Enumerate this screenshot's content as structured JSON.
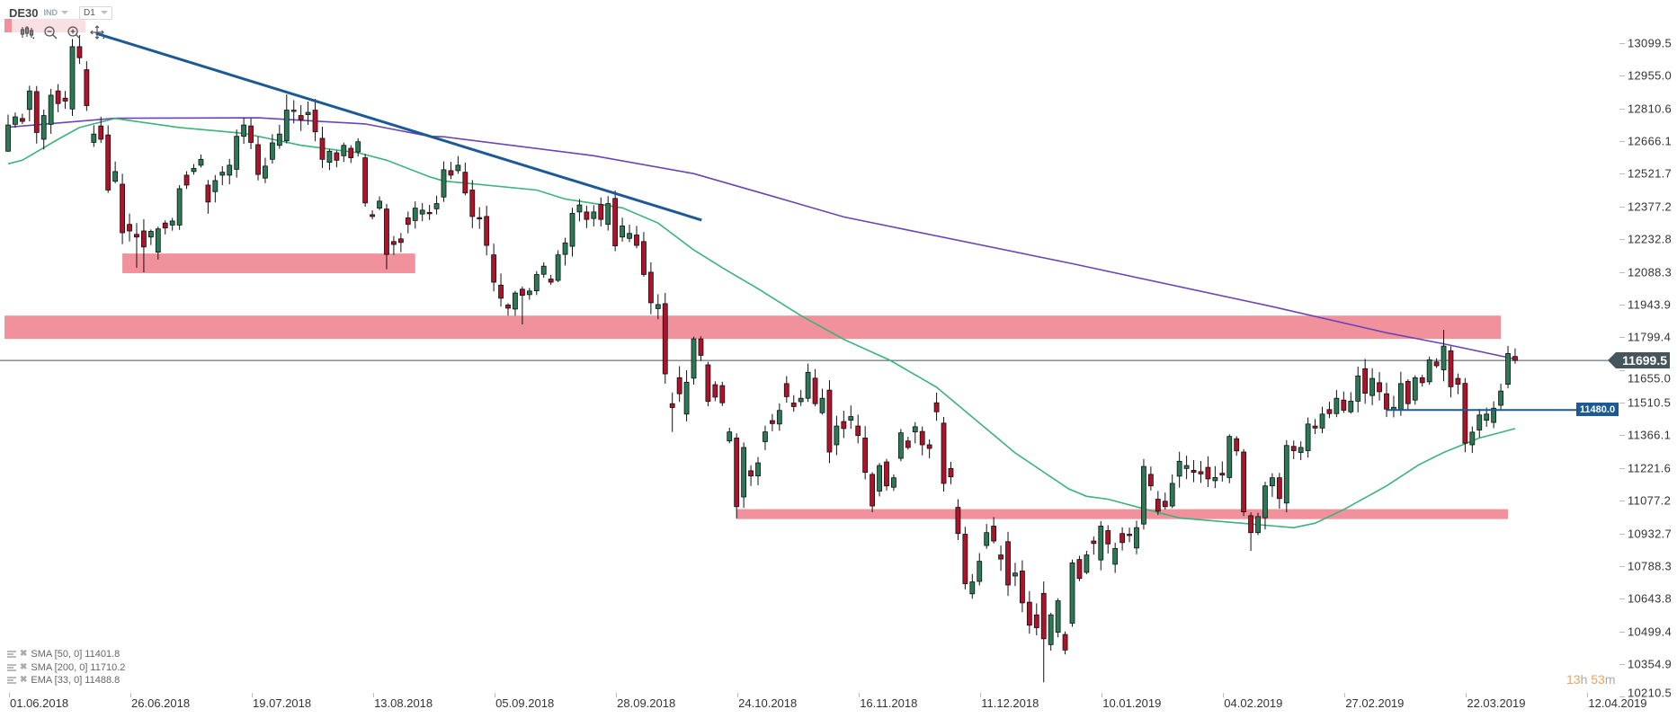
{
  "header": {
    "symbol": "DE30",
    "category": "IND",
    "timeframe": "D1"
  },
  "toolbar": {
    "icons": [
      "candlestick-icon",
      "zoom-out-icon",
      "zoom-in-icon",
      "move-icon"
    ]
  },
  "current_price": "11699.5",
  "hline_label": "11480.0",
  "timer": {
    "hours": "13",
    "h": "h",
    "minutes": "53",
    "m": "m"
  },
  "legend": [
    {
      "label": "SMA [50, 0] 11401.8"
    },
    {
      "label": "SMA [200, 0] 11710.2"
    },
    {
      "label": "EMA [33, 0] 11488.8"
    }
  ],
  "colors": {
    "up": "#2b7a55",
    "down": "#b0122a",
    "sma50": "#3cb37a",
    "sma200": "#6a45b8",
    "zone": "#f0919c",
    "trend": "#1b5a96",
    "price_line": "#46545e"
  },
  "chart_data": {
    "type": "candlestick",
    "title": "DE30 D1",
    "ylim": [
      10210.5,
      13099.5
    ],
    "y_ticks": [
      "13099.5",
      "12955.0",
      "12810.6",
      "12666.1",
      "12521.7",
      "12377.2",
      "12232.8",
      "12088.3",
      "11943.9",
      "11799.4",
      "11655.0",
      "11510.5",
      "11366.1",
      "11221.6",
      "11077.2",
      "10932.7",
      "10788.3",
      "10643.8",
      "10499.4",
      "10354.9",
      "10210.5"
    ],
    "x_ticks": [
      {
        "label": "01.06.2018",
        "index": 0
      },
      {
        "label": "26.06.2018",
        "index": 17
      },
      {
        "label": "19.07.2018",
        "index": 34
      },
      {
        "label": "13.08.2018",
        "index": 51
      },
      {
        "label": "05.09.2018",
        "index": 68
      },
      {
        "label": "28.09.2018",
        "index": 85
      },
      {
        "label": "24.10.2018",
        "index": 102
      },
      {
        "label": "16.11.2018",
        "index": 119
      },
      {
        "label": "11.12.2018",
        "index": 136
      },
      {
        "label": "10.01.2019",
        "index": 153
      },
      {
        "label": "04.02.2019",
        "index": 170
      },
      {
        "label": "27.02.2019",
        "index": 187
      },
      {
        "label": "22.03.2019",
        "index": 204
      },
      {
        "label": "12.04.2019",
        "index": 221
      }
    ],
    "candles_format": "[open, close, high?, low?]",
    "candles": [
      [
        12626,
        12742,
        12788,
        12623
      ],
      [
        12745,
        12778
      ],
      [
        12771,
        12758
      ],
      [
        12811,
        12893
      ],
      [
        12890,
        12709
      ],
      [
        12679,
        12784
      ],
      [
        12745,
        12874
      ],
      [
        12893,
        12837
      ],
      [
        12861,
        12848
      ],
      [
        12813,
        13089
      ],
      [
        13089,
        13040,
        13140
      ],
      [
        12987,
        12828
      ],
      [
        12665,
        12702
      ],
      [
        12738,
        12679
      ],
      [
        12698,
        12454
      ],
      [
        12493,
        12536
      ],
      [
        12480,
        12265
      ],
      [
        12302,
        12273
      ],
      [
        12258,
        12246,
        null,
        12110
      ],
      [
        12273,
        12202,
        null,
        12090
      ],
      [
        12246,
        12271
      ],
      [
        12179,
        12282
      ],
      [
        12308,
        12286
      ],
      [
        12299,
        12317
      ],
      [
        12299,
        12460
      ],
      [
        12520,
        12476
      ],
      [
        12536,
        12550
      ],
      [
        12564,
        12590
      ],
      [
        12476,
        12401
      ],
      [
        12447,
        12496
      ],
      [
        12520,
        12533
      ],
      [
        12520,
        12564
      ],
      [
        12546,
        12692
      ],
      [
        12692,
        12742
      ],
      [
        12738,
        12665
      ],
      [
        12655,
        12523
      ],
      [
        12507,
        12560
      ],
      [
        12590,
        12663
      ],
      [
        12652,
        12702
      ],
      [
        12672,
        12808,
        12877
      ],
      [
        12802,
        12808
      ],
      [
        12784,
        12765
      ],
      [
        12788,
        12798
      ],
      [
        12808,
        12712
      ],
      [
        12683,
        12590
      ],
      [
        12577,
        12626
      ],
      [
        12619,
        12586
      ],
      [
        12606,
        12652
      ],
      [
        12639,
        12597
      ],
      [
        12623,
        12668
      ],
      [
        12597,
        12397
      ],
      [
        12345,
        12337
      ],
      [
        12374,
        12405
      ],
      [
        12370,
        12169,
        null,
        12103
      ],
      [
        12226,
        12213
      ],
      [
        12238,
        12222
      ],
      [
        12331,
        12302
      ],
      [
        12319,
        12374
      ],
      [
        12348,
        12365
      ],
      [
        12355,
        12350
      ],
      [
        12371,
        12394
      ],
      [
        12423,
        12544
      ],
      [
        12540,
        12520
      ],
      [
        12540,
        12564
      ],
      [
        12533,
        12441
      ],
      [
        12454,
        12337
      ],
      [
        12332,
        12330
      ],
      [
        12337,
        12209
      ],
      [
        12167,
        12046
      ],
      [
        12033,
        11975
      ],
      [
        11945,
        11931
      ],
      [
        11927,
        11998
      ],
      [
        12015,
        11988,
        null,
        11859
      ],
      [
        11991,
        12007
      ],
      [
        12008,
        12080
      ],
      [
        12081,
        12117
      ],
      [
        12060,
        12046
      ],
      [
        12054,
        12167
      ],
      [
        12169,
        12220
      ],
      [
        12205,
        12351
      ],
      [
        12357,
        12388
      ],
      [
        12357,
        12324
      ],
      [
        12328,
        12357
      ],
      [
        12390,
        12324
      ],
      [
        12302,
        12394
      ],
      [
        12417,
        12207
      ],
      [
        12246,
        12295
      ],
      [
        12240,
        12262
      ],
      [
        12255,
        12209
      ],
      [
        12226,
        12080
      ],
      [
        12090,
        11955
      ],
      [
        11929,
        11947
      ],
      [
        11951,
        11640
      ],
      [
        11508,
        11491,
        null,
        11383
      ],
      [
        11623,
        11552
      ],
      [
        11462,
        11603
      ],
      [
        11621,
        11795
      ],
      [
        11795,
        11722
      ],
      [
        11680,
        11518
      ],
      [
        11592,
        11537
      ],
      [
        11588,
        11512
      ],
      [
        11343,
        11383
      ],
      [
        11356,
        11052
      ],
      [
        11095,
        11314
      ],
      [
        11211,
        11188
      ],
      [
        11188,
        11246
      ],
      [
        11340,
        11383
      ],
      [
        11433,
        11420
      ],
      [
        11418,
        11478
      ],
      [
        11597,
        11539
      ],
      [
        11511,
        11495
      ],
      [
        11517,
        11532
      ],
      [
        11532,
        11647
      ],
      [
        11621,
        11508
      ],
      [
        11468,
        11532
      ],
      [
        11568,
        11294
      ],
      [
        11326,
        11409
      ],
      [
        11429,
        11398
      ],
      [
        11435,
        11451
      ],
      [
        11409,
        11367
      ],
      [
        11356,
        11204
      ],
      [
        11195,
        11055
      ],
      [
        11121,
        11234
      ],
      [
        11250,
        11144
      ],
      [
        11138,
        11180
      ],
      [
        11266,
        11379
      ],
      [
        11343,
        11314
      ],
      [
        11383,
        11406
      ],
      [
        11385,
        11326
      ],
      [
        11326,
        11310
      ],
      [
        11512,
        11472,
        11557
      ],
      [
        11422,
        11155
      ],
      [
        11221,
        11184
      ],
      [
        11049,
        10933,
        11085
      ],
      [
        10930,
        10711
      ],
      [
        10666,
        10719
      ],
      [
        10721,
        10810
      ],
      [
        10880,
        10937
      ],
      [
        10966,
        10900
      ],
      [
        10838,
        10820
      ],
      [
        10897,
        10705
      ],
      [
        10745,
        10758
      ],
      [
        10767,
        10626
      ],
      [
        10629,
        10527
      ],
      [
        10573,
        10516
      ],
      [
        10668,
        10467,
        null,
        10274
      ],
      [
        10441,
        10573
      ],
      [
        10496,
        10635
      ],
      [
        10486,
        10417
      ],
      [
        10536,
        10803
      ],
      [
        10818,
        10734
      ],
      [
        10761,
        10838
      ],
      [
        10900,
        10889
      ],
      [
        10816,
        10966
      ],
      [
        10946,
        10887
      ],
      [
        10797,
        10867
      ],
      [
        10933,
        10893
      ],
      [
        10930,
        10926
      ],
      [
        10869,
        10959
      ],
      [
        10975,
        11230
      ],
      [
        11195,
        11144
      ],
      [
        11085,
        11032
      ],
      [
        11076,
        11052
      ],
      [
        11055,
        11155
      ],
      [
        11187,
        11253
      ],
      [
        11221,
        11234
      ],
      [
        11213,
        11204
      ],
      [
        11207,
        11197
      ],
      [
        11226,
        11175
      ],
      [
        11167,
        11181
      ],
      [
        11200,
        11192
      ],
      [
        11181,
        11363
      ],
      [
        11353,
        11299
      ],
      [
        11294,
        11029
      ],
      [
        11012,
        10937,
        null,
        10856
      ],
      [
        10937,
        11008
      ],
      [
        11003,
        11144
      ],
      [
        11144,
        11180
      ],
      [
        11180,
        11088
      ],
      [
        11068,
        11323
      ],
      [
        11319,
        11300
      ],
      [
        11292,
        11314
      ],
      [
        11300,
        11418
      ],
      [
        11409,
        11400
      ],
      [
        11400,
        11462
      ],
      [
        11482,
        11464
      ],
      [
        11464,
        11532
      ],
      [
        11524,
        11479
      ],
      [
        11472,
        11519
      ],
      [
        11519,
        11631
      ],
      [
        11663,
        11554
      ],
      [
        11544,
        11620
      ],
      [
        11601,
        11561
      ],
      [
        11552,
        11484
      ],
      [
        11479,
        11492
      ],
      [
        11482,
        11597
      ],
      [
        11607,
        11508
      ],
      [
        11524,
        11623
      ],
      [
        11623,
        11601
      ],
      [
        11605,
        11702
      ],
      [
        11693,
        11676
      ],
      [
        11658,
        11763,
        11835
      ],
      [
        11742,
        11583
      ],
      [
        11620,
        11594
      ],
      [
        11598,
        11333
      ],
      [
        11326,
        11382
      ],
      [
        11391,
        11458
      ],
      [
        11435,
        11462
      ],
      [
        11425,
        11488
      ],
      [
        11501,
        11564
      ],
      [
        11594,
        11730
      ],
      [
        11717,
        11699.5
      ]
    ],
    "sma200": [
      [
        0,
        12732
      ],
      [
        15,
        12772
      ],
      [
        35,
        12774
      ],
      [
        50,
        12747
      ],
      [
        59,
        12692
      ],
      [
        61,
        12690
      ],
      [
        82,
        12606
      ],
      [
        96,
        12527
      ],
      [
        107,
        12427
      ],
      [
        117,
        12335
      ],
      [
        149,
        12128
      ],
      [
        177,
        11938
      ],
      [
        193,
        11822
      ],
      [
        201,
        11773
      ],
      [
        211,
        11706
      ]
    ],
    "sma50": [
      [
        0,
        12570
      ],
      [
        2,
        12586
      ],
      [
        7,
        12679
      ],
      [
        10,
        12731
      ],
      [
        15,
        12771
      ],
      [
        24,
        12731
      ],
      [
        33,
        12705
      ],
      [
        41,
        12652
      ],
      [
        49,
        12619
      ],
      [
        53,
        12586
      ],
      [
        59,
        12513
      ],
      [
        61,
        12494
      ],
      [
        74,
        12454
      ],
      [
        78,
        12414
      ],
      [
        86,
        12375
      ],
      [
        91,
        12308
      ],
      [
        96,
        12189
      ],
      [
        100,
        12110
      ],
      [
        105,
        12017
      ],
      [
        111,
        11898
      ],
      [
        117,
        11793
      ],
      [
        123.5,
        11700
      ],
      [
        130,
        11581
      ],
      [
        135,
        11449
      ],
      [
        141,
        11290
      ],
      [
        148.5,
        11131
      ],
      [
        151,
        11098
      ],
      [
        154,
        11085
      ],
      [
        159,
        11043
      ],
      [
        164,
        11002
      ],
      [
        170,
        10986
      ],
      [
        180,
        10959
      ],
      [
        183,
        10979
      ],
      [
        187,
        11039
      ],
      [
        193,
        11144
      ],
      [
        197.5,
        11237
      ],
      [
        201,
        11292
      ],
      [
        206,
        11356
      ],
      [
        211,
        11398
      ]
    ],
    "zones": [
      {
        "from_index": 16,
        "to_index": 57,
        "top": 12173,
        "bottom": 12086
      },
      {
        "from_index": -0.5,
        "to_index": 209,
        "top": 11898,
        "bottom": 11795
      },
      {
        "from_index": 102,
        "to_index": 210,
        "top": 11041,
        "bottom": 10997
      }
    ],
    "trendline": {
      "start": [
        12.3,
        13148
      ],
      "end": [
        97.1,
        12321
      ]
    },
    "hline": {
      "value": 11480.0,
      "from_index": 193
    },
    "last_price": 11699.5
  }
}
